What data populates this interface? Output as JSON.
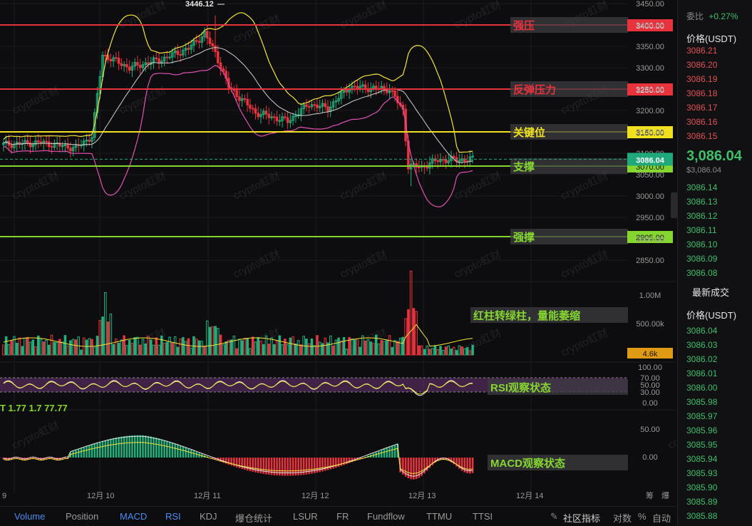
{
  "chart_data": [
    {
      "type": "candlestick",
      "panel": "price",
      "y_ticks": [
        "3450.00",
        "3400.00",
        "3350.00",
        "3300.00",
        "3250.00",
        "3200.00",
        "3150.00",
        "3100.00",
        "3050.00",
        "3000.00",
        "2950.00",
        "2900.00",
        "2850.00"
      ],
      "x_ticks": [
        "9",
        "12月 10",
        "12月 11",
        "12月 12",
        "12月 13",
        "12月 14"
      ],
      "high_annotation": "3446.12",
      "last_price_label": "3086.04",
      "obscured_label": "3070.00",
      "levels": [
        {
          "name": "强压",
          "value": "3400.00",
          "color": "#e8323c"
        },
        {
          "name": "反弹压力",
          "value": "3250.00",
          "color": "#e8323c"
        },
        {
          "name": "关键位",
          "value": "3150.00",
          "color": "#f0e020"
        },
        {
          "name": "支撑",
          "value": "3070.00",
          "color": "#86d630"
        },
        {
          "name": "强撑",
          "value": "2905.00",
          "color": "#86d630"
        }
      ],
      "indicators": [
        "Bollinger Bands (20)",
        "MA"
      ]
    },
    {
      "type": "bar",
      "panel": "volume",
      "y_ticks": [
        "1.00M",
        "500.00k"
      ],
      "last_value_label": "4.6k",
      "note": "红柱转绿柱，量能萎缩"
    },
    {
      "type": "line",
      "panel": "rsi",
      "y_ticks": [
        "100.00",
        "70.00",
        "50.00",
        "30.00",
        "0.00"
      ],
      "note": "RSI观察状态"
    },
    {
      "type": "bar",
      "panel": "macd",
      "y_ticks": [
        "50.00",
        "0.00"
      ],
      "note": "MACD观察状态"
    }
  ],
  "watermark": "crypto虹财",
  "header_partial": "T 1.77 1.7 77.77",
  "right_panel": {
    "top_label": "委比",
    "top_value": "+0.27%",
    "price_header": "价格(USDT)",
    "asks": [
      "3086.21",
      "3086.20",
      "3086.19",
      "3086.18",
      "3086.17",
      "3086.16",
      "3086.15"
    ],
    "last_price": "3,086.04",
    "last_price_sub": "$3,086.04",
    "bids": [
      "3086.14",
      "3086.13",
      "3086.12",
      "3086.11",
      "3086.10",
      "3086.09",
      "3086.08"
    ],
    "trades_title": "最新成交",
    "trades_header": "价格(USDT)",
    "trades": [
      "3086.04",
      "3086.03",
      "3086.02",
      "3086.01",
      "3086.00",
      "3085.98",
      "3085.97",
      "3085.96",
      "3085.95",
      "3085.94",
      "3085.93",
      "3085.90",
      "3085.89",
      "3085.88"
    ]
  },
  "bottom_tabs": [
    "Volume",
    "Position",
    "MACD",
    "RSI",
    "KDJ",
    "爆仓统计",
    "LSUR",
    "FR",
    "Fundflow",
    "TTMU",
    "TTSI"
  ],
  "bottom_right": {
    "community": "社区指标",
    "log": "对数",
    "percent": "%",
    "auto": "自动"
  },
  "axis_right_partial": [
    "筹",
    "爆"
  ],
  "colors": {
    "up": "#e8323c",
    "down": "#22b07d",
    "bollinger_upper": "#f5e33a",
    "bollinger_mid": "#cfcfcf",
    "bollinger_lower": "#e052b4",
    "last_price_bg": "#1fa97a"
  }
}
